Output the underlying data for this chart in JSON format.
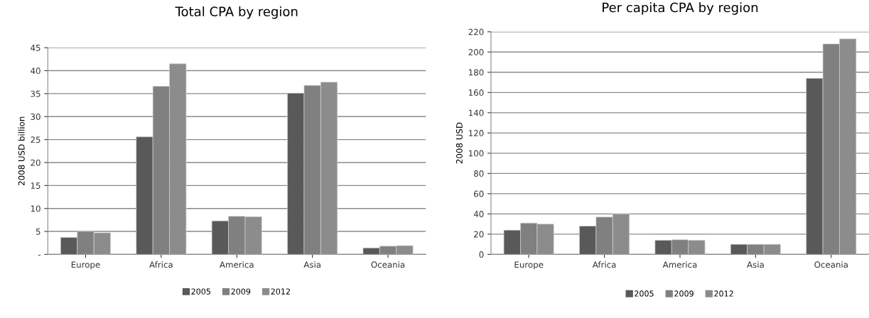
{
  "chart_data": [
    {
      "type": "bar",
      "title": "Total CPA by region",
      "ylabel": "2008 USD billion",
      "categories": [
        "Europe",
        "Africa",
        "America",
        "Asia",
        "Oceania"
      ],
      "series": [
        {
          "name": "2005",
          "color": "#595959",
          "values": [
            3.7,
            25.6,
            7.3,
            35.1,
            1.4
          ]
        },
        {
          "name": "2009",
          "color": "#808080",
          "values": [
            5.0,
            36.6,
            8.3,
            36.8,
            1.8
          ]
        },
        {
          "name": "2012",
          "color": "#8c8c8c",
          "values": [
            4.7,
            41.5,
            8.2,
            37.5,
            1.9
          ]
        }
      ],
      "ylim": [
        0,
        45
      ],
      "yticks": [
        {
          "value": 0,
          "label": "-"
        },
        5,
        10,
        15,
        20,
        25,
        30,
        35,
        40,
        45
      ],
      "grid": "y",
      "legend": "bottom"
    },
    {
      "type": "bar",
      "title": "Per capita CPA by region",
      "ylabel": "2008 USD",
      "categories": [
        "Europe",
        "Africa",
        "America",
        "Asia",
        "Oceania"
      ],
      "series": [
        {
          "name": "2005",
          "color": "#595959",
          "values": [
            24,
            28,
            14,
            10,
            174
          ]
        },
        {
          "name": "2009",
          "color": "#808080",
          "values": [
            31,
            37,
            14.5,
            10,
            208
          ]
        },
        {
          "name": "2012",
          "color": "#8c8c8c",
          "values": [
            30,
            40,
            14,
            10,
            213
          ]
        }
      ],
      "ylim": [
        0,
        220
      ],
      "yticks": [
        0,
        20,
        40,
        60,
        80,
        100,
        120,
        140,
        160,
        180,
        200,
        220
      ],
      "grid": "y",
      "legend": "bottom"
    }
  ]
}
